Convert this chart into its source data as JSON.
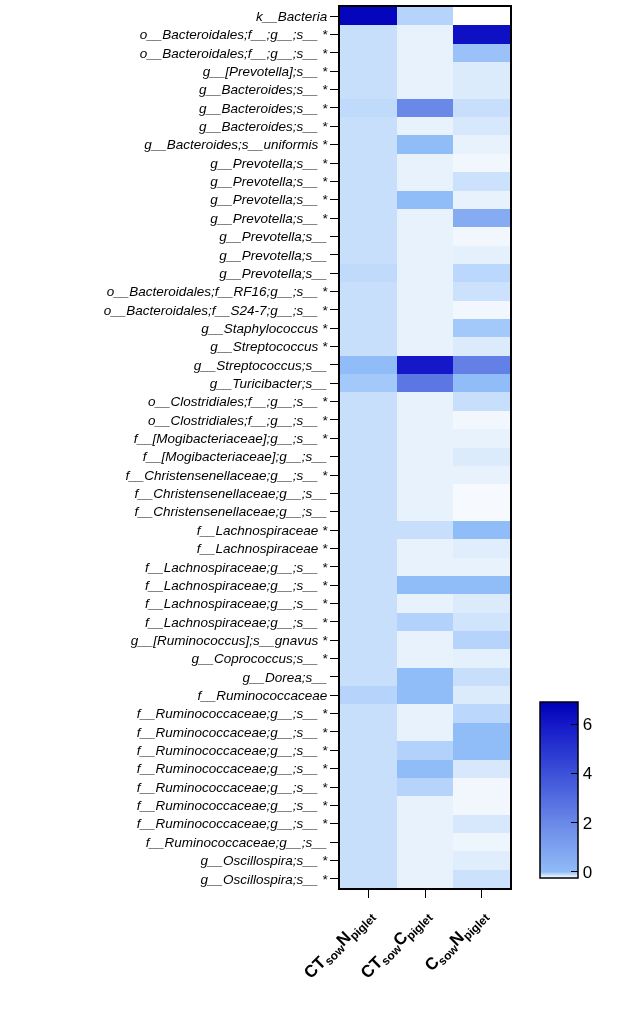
{
  "chart_data": {
    "type": "heatmap",
    "categories": [
      "CT$_{sow}$N$_{piglet}$",
      "CT$_{sow}$C$_{piglet}$",
      "C$_{sow}$N$_{piglet}$"
    ],
    "y_categories": [
      "k__Bacteria",
      "o__Bacteroidales;f__;g__;s__ *",
      "o__Bacteroidales;f__;g__;s__ *",
      "g__[Prevotella];s__ *",
      "g__Bacteroides;s__ *",
      "g__Bacteroides;s__ *",
      "g__Bacteroides;s__ *",
      "g__Bacteroides;s__uniformis *",
      "g__Prevotella;s__ *",
      "g__Prevotella;s__ *",
      "g__Prevotella;s__ *",
      "g__Prevotella;s__ *",
      "g__Prevotella;s__",
      "g__Prevotella;s__",
      "g__Prevotella;s__",
      "o__Bacteroidales;f__RF16;g__;s__ *",
      "o__Bacteroidales;f__S24-7;g__;s__ *",
      "g__Staphylococcus *",
      "g__Streptococcus *",
      "g__Streptococcus;s__",
      "g__Turicibacter;s__",
      "o__Clostridiales;f__;g__;s__ *",
      "o__Clostridiales;f__;g__;s__ *",
      "f__[Mogibacteriaceae];g__;s__ *",
      "f__[Mogibacteriaceae];g__;s__",
      "f__Christensenellaceae;g__;s__ *",
      "f__Christensenellaceae;g__;s__",
      "f__Christensenellaceae;g__;s__",
      "f__Lachnospiraceae *",
      "f__Lachnospiraceae *",
      "f__Lachnospiraceae;g__;s__ *",
      "f__Lachnospiraceae;g__;s__ *",
      "f__Lachnospiraceae;g__;s__ *",
      "f__Lachnospiraceae;g__;s__ *",
      "g__[Ruminococcus];s__gnavus *",
      "g__Coprococcus;s__ *",
      "g__Dorea;s__",
      "f__Ruminococcaceae",
      "f__Ruminococcaceae;g__;s__ *",
      "f__Ruminococcaceae;g__;s__ *",
      "f__Ruminococcaceae;g__;s__ *",
      "f__Ruminococcaceae;g__;s__ *",
      "f__Ruminococcaceae;g__;s__ *",
      "f__Ruminococcaceae;g__;s__ *",
      "f__Ruminococcaceae;g__;s__ *",
      "f__Ruminococcaceae;g__;s__",
      "g__Oscillospira;s__ *",
      "g__Oscillospira;s__ *"
    ],
    "cells": [
      [
        6.7,
        -0.08,
        null
      ],
      [
        -0.12,
        -0.2,
        6.3
      ],
      [
        -0.12,
        -0.2,
        -0.02
      ],
      [
        -0.12,
        -0.2,
        -0.17
      ],
      [
        -0.12,
        -0.2,
        -0.17
      ],
      [
        -0.1,
        2,
        -0.12
      ],
      [
        -0.12,
        -0.2,
        -0.16
      ],
      [
        -0.12,
        0,
        -0.2
      ],
      [
        -0.12,
        -0.2,
        -0.22
      ],
      [
        -0.12,
        -0.2,
        -0.13
      ],
      [
        -0.12,
        0,
        -0.2
      ],
      [
        -0.12,
        -0.2,
        0.6
      ],
      [
        -0.12,
        -0.2,
        -0.22
      ],
      [
        -0.12,
        -0.2,
        -0.19
      ],
      [
        -0.1,
        -0.2,
        -0.09
      ],
      [
        -0.12,
        -0.2,
        -0.13
      ],
      [
        -0.12,
        -0.2,
        -0.22
      ],
      [
        -0.12,
        -0.2,
        -0.04
      ],
      [
        -0.12,
        -0.2,
        -0.17
      ],
      [
        0,
        6,
        2.3
      ],
      [
        -0.04,
        2.6,
        0
      ],
      [
        -0.12,
        -0.2,
        -0.12
      ],
      [
        -0.12,
        -0.2,
        -0.22
      ],
      [
        -0.12,
        -0.2,
        -0.2
      ],
      [
        -0.12,
        -0.2,
        -0.17
      ],
      [
        -0.12,
        -0.2,
        -0.2
      ],
      [
        -0.12,
        -0.2,
        -0.23
      ],
      [
        -0.12,
        -0.2,
        -0.23
      ],
      [
        -0.12,
        -0.12,
        0
      ],
      [
        -0.12,
        -0.2,
        -0.18
      ],
      [
        -0.12,
        -0.2,
        -0.2
      ],
      [
        -0.12,
        0,
        0
      ],
      [
        -0.12,
        -0.2,
        -0.17
      ],
      [
        -0.12,
        -0.07,
        -0.14
      ],
      [
        -0.12,
        -0.2,
        -0.08
      ],
      [
        -0.12,
        -0.2,
        -0.19
      ],
      [
        -0.12,
        0,
        -0.12
      ],
      [
        -0.08,
        0,
        -0.17
      ],
      [
        -0.12,
        -0.2,
        -0.09
      ],
      [
        -0.12,
        -0.2,
        0
      ],
      [
        -0.12,
        -0.07,
        0
      ],
      [
        -0.12,
        0,
        -0.16
      ],
      [
        -0.12,
        -0.08,
        -0.22
      ],
      [
        -0.12,
        -0.2,
        -0.22
      ],
      [
        -0.12,
        -0.2,
        -0.16
      ],
      [
        -0.12,
        -0.2,
        -0.21
      ],
      [
        -0.12,
        -0.2,
        -0.18
      ],
      [
        -0.12,
        -0.2,
        -0.13
      ]
    ],
    "clim": [
      -0.25,
      6.9
    ],
    "cticks": [
      0,
      2,
      4,
      6
    ]
  }
}
